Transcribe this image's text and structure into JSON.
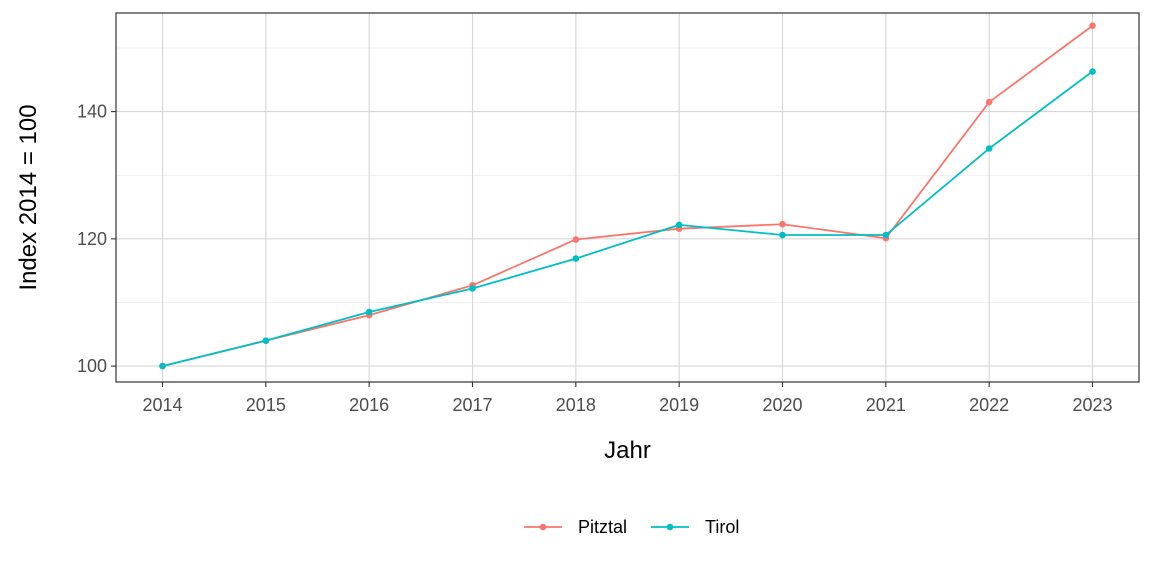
{
  "chart_data": {
    "type": "line",
    "title": "",
    "xlabel": "Jahr",
    "ylabel": "Index  2014  = 100",
    "x": [
      2014,
      2015,
      2016,
      2017,
      2018,
      2019,
      2020,
      2021,
      2022,
      2023
    ],
    "ylim": [
      97.5,
      155.5
    ],
    "yticks": [
      100,
      120,
      140
    ],
    "grid": true,
    "legend_position": "bottom",
    "series": [
      {
        "name": "Pitztal",
        "color": "#F8766D",
        "values": [
          100,
          104.0,
          108.0,
          112.7,
          119.9,
          121.6,
          122.3,
          120.1,
          141.5,
          153.5
        ]
      },
      {
        "name": "Tirol",
        "color": "#00BFC4",
        "values": [
          100,
          104.0,
          108.5,
          112.2,
          116.9,
          122.2,
          120.6,
          120.6,
          134.2,
          146.3
        ]
      }
    ]
  }
}
